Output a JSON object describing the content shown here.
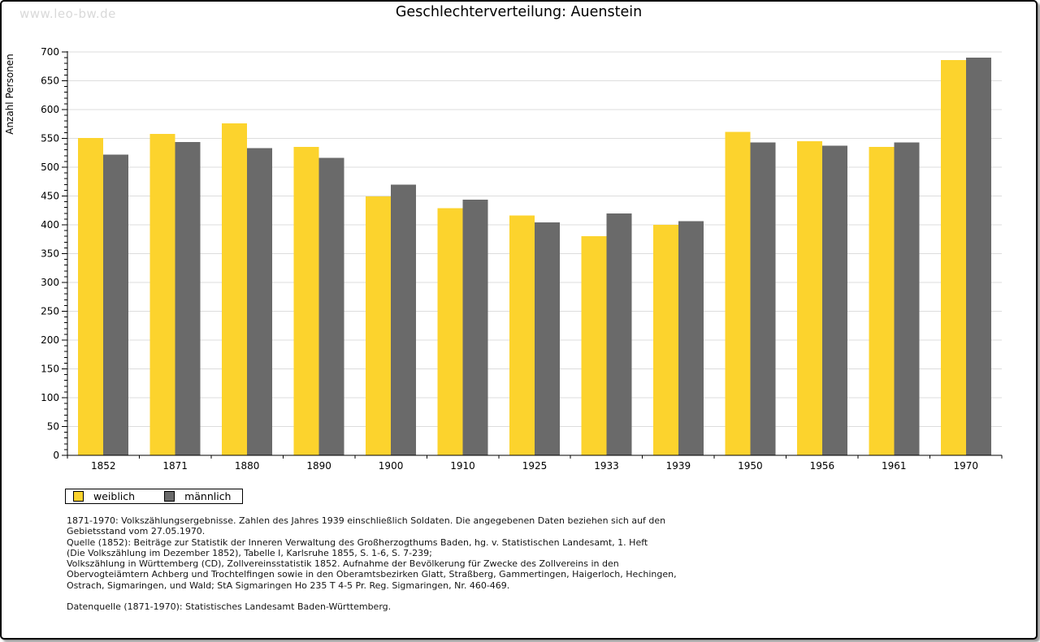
{
  "watermark": "www.leo-bw.de",
  "chart_data": {
    "type": "bar",
    "title": "Geschlechterverteilung: Auenstein",
    "ylabel": "Anzahl Personen",
    "xlabel": "",
    "categories": [
      "1852",
      "1871",
      "1880",
      "1890",
      "1900",
      "1910",
      "1925",
      "1933",
      "1939",
      "1950",
      "1956",
      "1961",
      "1970"
    ],
    "series": [
      {
        "name": "weiblich",
        "color": "#FCD32D",
        "values": [
          551,
          558,
          576,
          535,
          449,
          429,
          416,
          380,
          400,
          561,
          545,
          535,
          686
        ]
      },
      {
        "name": "männlich",
        "color": "#6A6A6A",
        "values": [
          522,
          544,
          533,
          516,
          470,
          444,
          404,
          420,
          406,
          543,
          537,
          543,
          690
        ]
      }
    ],
    "ylim": [
      0,
      700
    ],
    "yticks": {
      "step": 50,
      "minor": 10
    },
    "grid": true,
    "legend_position": "bottom-left",
    "colors": {
      "grid": "#DDDDDD",
      "axis": "#000000",
      "background": "#FFFFFF"
    }
  },
  "footer": {
    "lines": [
      "1871-1970: Volkszählungsergebnisse. Zahlen des Jahres 1939 einschließlich Soldaten. Die angegebenen Daten beziehen sich auf den",
      "Gebietsstand vom 27.05.1970.",
      "Quelle (1852): Beiträge zur Statistik der Inneren Verwaltung des Großherzogthums Baden, hg. v. Statistischen Landesamt, 1. Heft",
      "(Die Volkszählung im Dezember 1852), Tabelle I, Karlsruhe 1855, S. 1-6, S. 7-239;",
      "Volkszählung in Württemberg (CD), Zollvereinsstatistik 1852. Aufnahme der Bevölkerung für Zwecke des Zollvereins in den",
      "Obervogteiämtern Achberg und Trochtelfingen sowie in den Oberamtsbezirken Glatt, Straßberg, Gammertingen, Haigerloch, Hechingen,",
      "Ostrach, Sigmaringen, und Wald; StA Sigmaringen Ho 235 T 4-5 Pr. Reg. Sigmaringen, Nr. 460-469."
    ],
    "datenquelle": "Datenquelle (1871-1970): Statistisches Landesamt Baden-Württemberg."
  }
}
